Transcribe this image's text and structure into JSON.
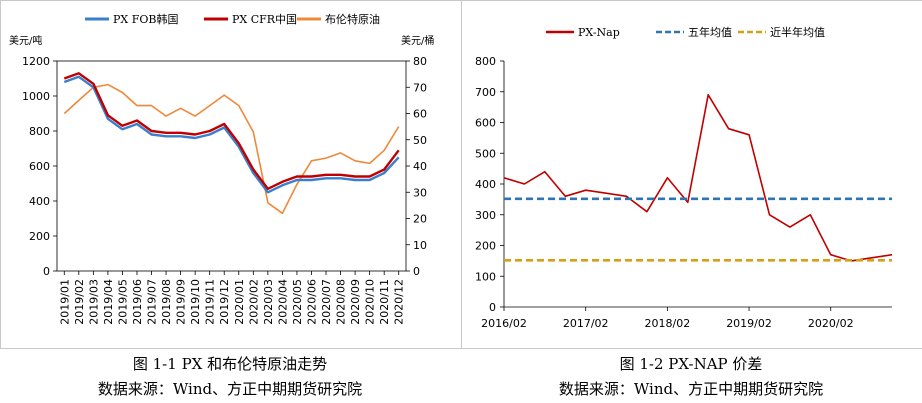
{
  "captions": {
    "left_title": "图 1-1 PX 和布伦特原油走势",
    "left_source": "数据来源：Wind、方正中期期货研究院",
    "right_title": "图 1-2 PX-NAP 价差",
    "right_source": "数据来源：Wind、方正中期期货研究院"
  },
  "chart_data": [
    {
      "type": "line",
      "left_unit": "美元/吨",
      "right_unit": "美元/桶",
      "ylim": [
        0,
        1200
      ],
      "yticks": [
        0,
        200,
        400,
        600,
        800,
        1000,
        1200
      ],
      "y2lim": [
        0,
        80
      ],
      "y2ticks": [
        0,
        10,
        20,
        30,
        40,
        50,
        60,
        70,
        80
      ],
      "x": [
        "2019/01",
        "2019/02",
        "2019/03",
        "2019/04",
        "2019/05",
        "2019/06",
        "2019/07",
        "2019/08",
        "2019/09",
        "2019/10",
        "2019/11",
        "2019/12",
        "2020/01",
        "2020/02",
        "2020/03",
        "2020/04",
        "2020/05",
        "2020/06",
        "2020/07",
        "2020/08",
        "2020/09",
        "2020/10",
        "2020/11",
        "2020/12"
      ],
      "series": [
        {
          "name": "PX FOB韩国",
          "color": "#3a7fcc",
          "axis": "left",
          "values": [
            1080,
            1110,
            1050,
            870,
            810,
            840,
            780,
            770,
            770,
            760,
            780,
            820,
            710,
            560,
            450,
            490,
            520,
            520,
            530,
            530,
            520,
            520,
            560,
            650
          ]
        },
        {
          "name": "PX CFR中国",
          "color": "#c00000",
          "axis": "left",
          "values": [
            1100,
            1130,
            1070,
            890,
            830,
            860,
            800,
            790,
            790,
            780,
            800,
            840,
            730,
            580,
            470,
            510,
            540,
            540,
            550,
            550,
            540,
            540,
            580,
            690
          ]
        },
        {
          "name": "布伦特原油",
          "color": "#f0883a",
          "axis": "right",
          "values": [
            60,
            65,
            70,
            71,
            68,
            63,
            63,
            59,
            62,
            59,
            63,
            67,
            63,
            53,
            26,
            22,
            33,
            42,
            43,
            45,
            42,
            41,
            46,
            55
          ]
        }
      ]
    },
    {
      "type": "line",
      "ylim": [
        0,
        800
      ],
      "yticks": [
        0,
        100,
        200,
        300,
        400,
        500,
        600,
        700,
        800
      ],
      "x_ticklabels": [
        "2016/02",
        "2017/02",
        "2018/02",
        "2019/02",
        "2020/02"
      ],
      "x": [
        "2016/02",
        "2016/05",
        "2016/08",
        "2016/11",
        "2017/02",
        "2017/05",
        "2017/08",
        "2017/11",
        "2018/02",
        "2018/05",
        "2018/08",
        "2018/11",
        "2019/02",
        "2019/05",
        "2019/08",
        "2019/11",
        "2020/02",
        "2020/05",
        "2020/08",
        "2020/11"
      ],
      "series": [
        {
          "name": "PX-Nap",
          "color": "#c00000",
          "style": "solid",
          "values": [
            420,
            400,
            440,
            360,
            380,
            370,
            360,
            310,
            420,
            340,
            690,
            580,
            560,
            300,
            260,
            300,
            170,
            150,
            160,
            170
          ]
        },
        {
          "name": "五年均值",
          "color": "#2e75b6",
          "style": "dashed",
          "values": [
            352,
            352,
            352,
            352,
            352,
            352,
            352,
            352,
            352,
            352,
            352,
            352,
            352,
            352,
            352,
            352,
            352,
            352,
            352,
            352
          ]
        },
        {
          "name": "近半年均值",
          "color": "#d4a017",
          "style": "dashed",
          "values": [
            152,
            152,
            152,
            152,
            152,
            152,
            152,
            152,
            152,
            152,
            152,
            152,
            152,
            152,
            152,
            152,
            152,
            152,
            152,
            152
          ]
        }
      ]
    }
  ]
}
